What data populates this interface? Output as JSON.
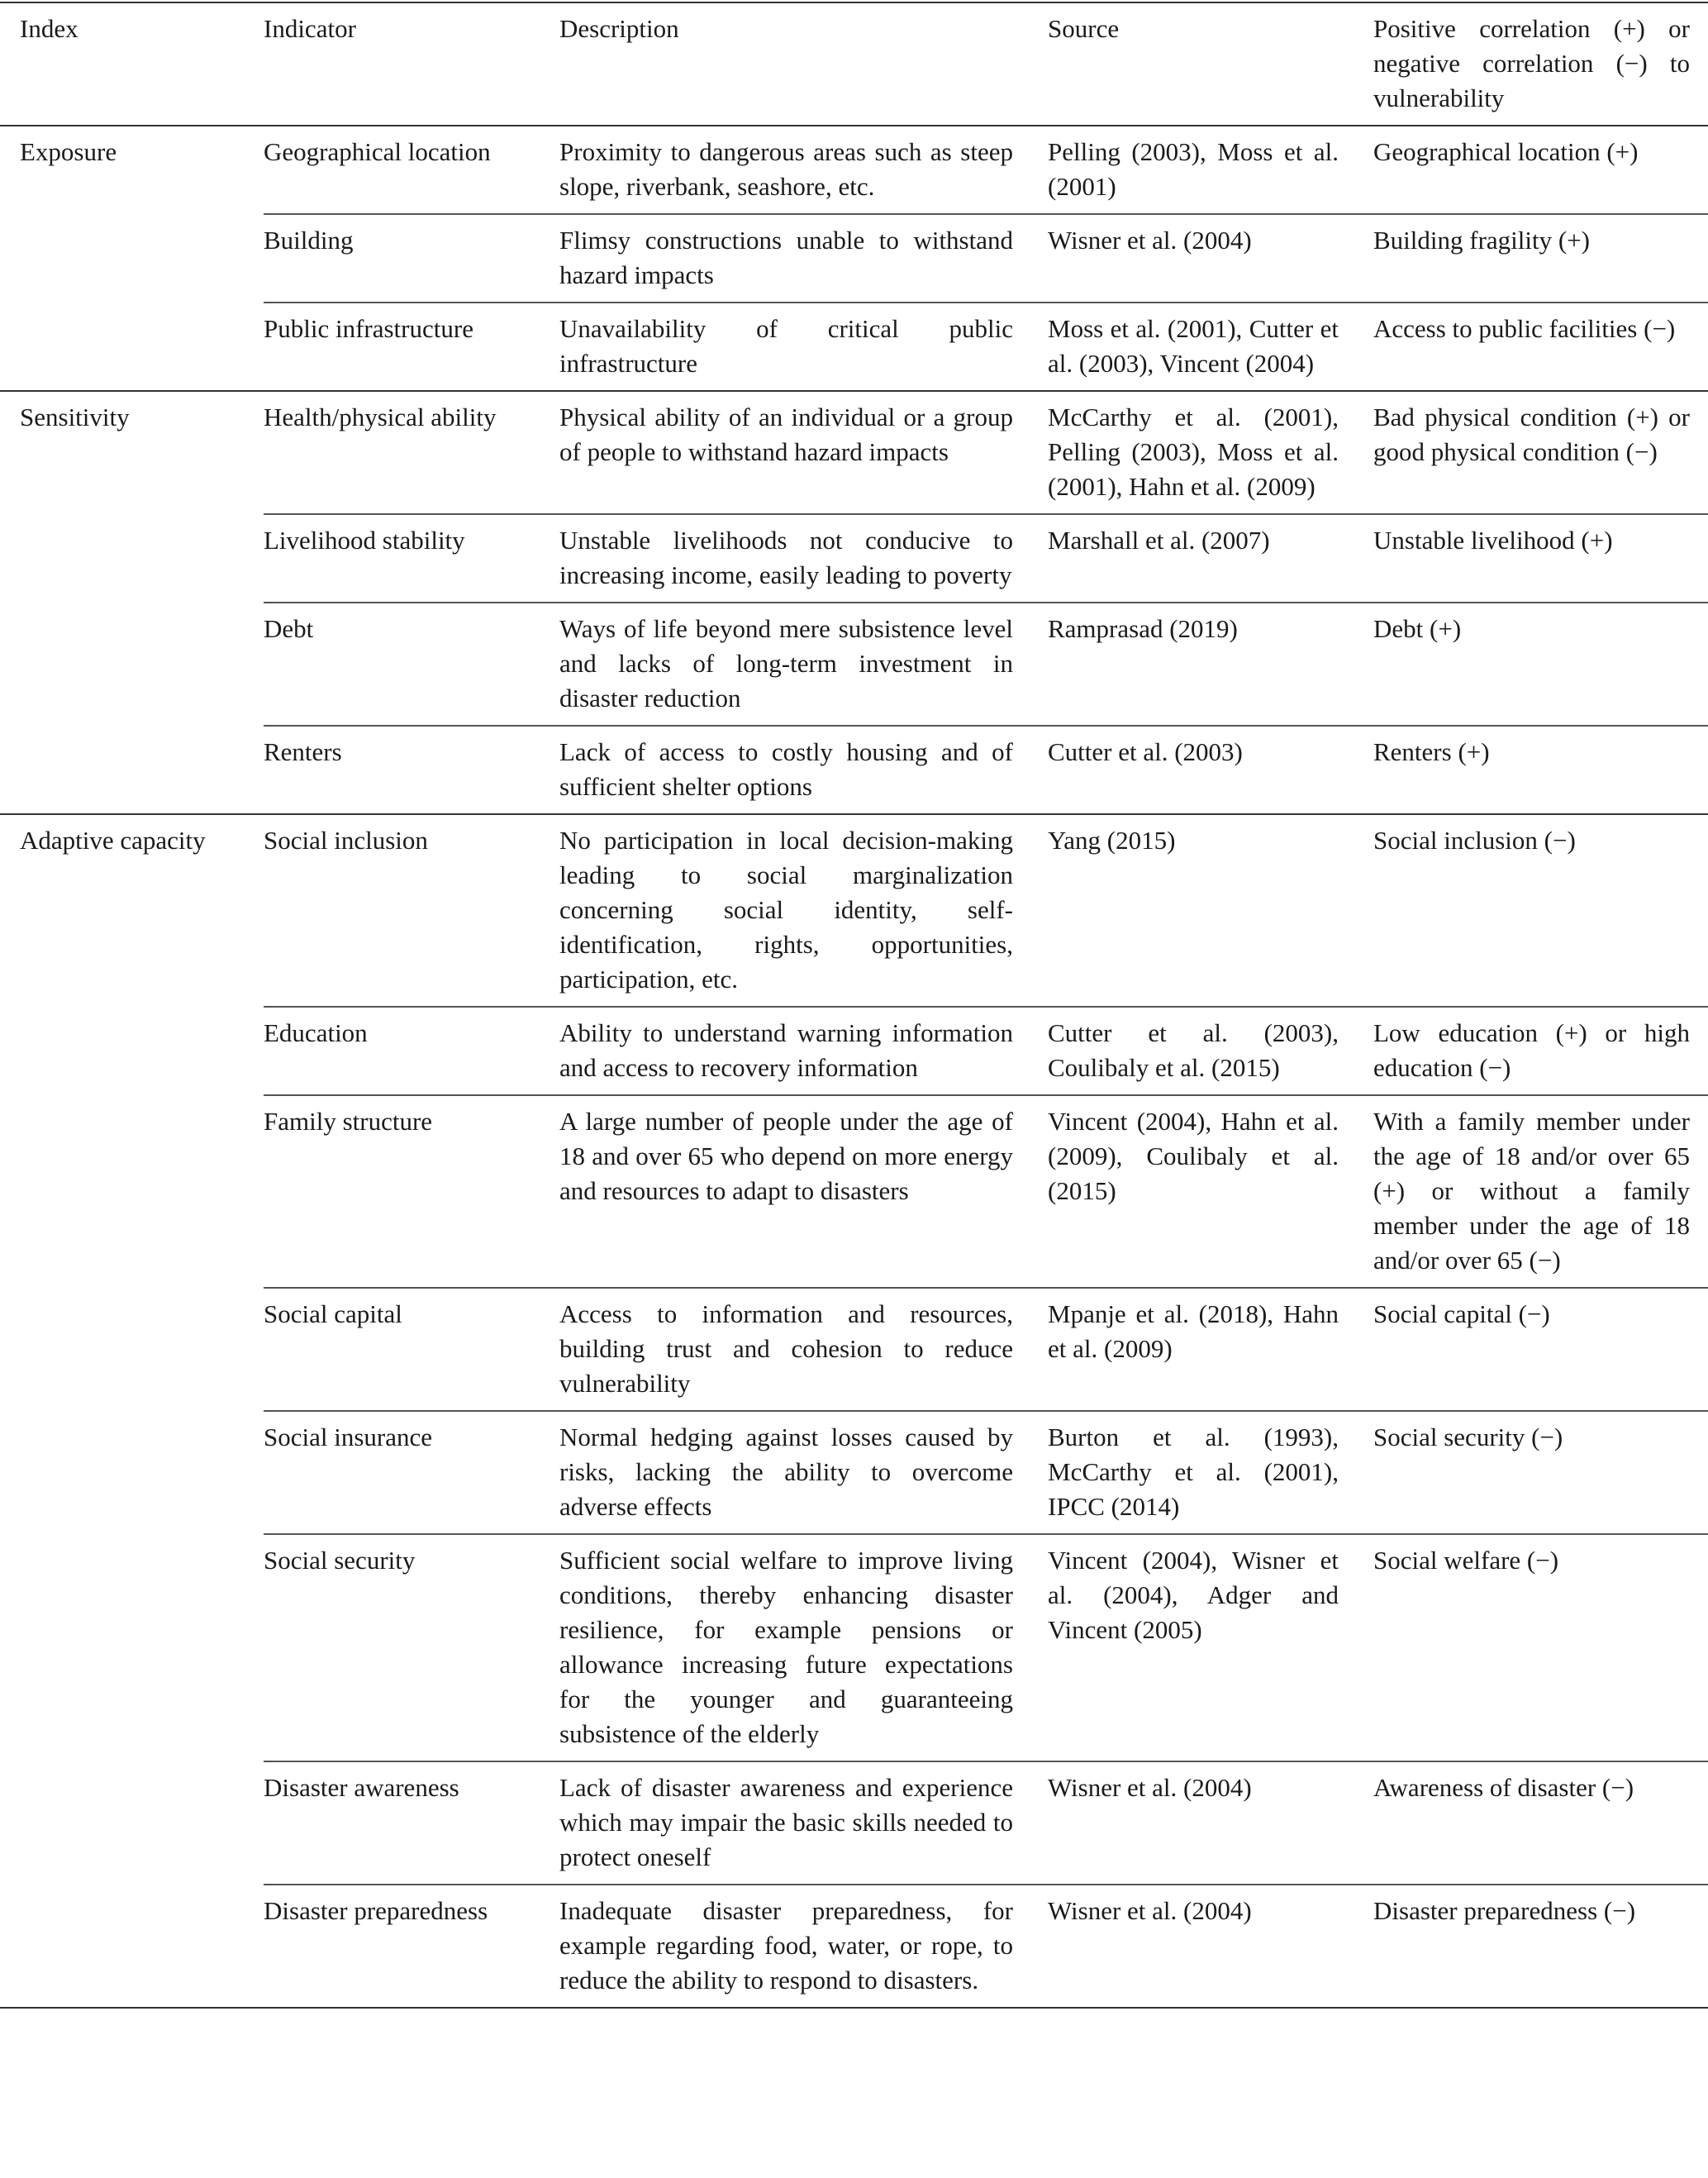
{
  "table": {
    "header": [
      "Index",
      "Indicator",
      "Description",
      "Source",
      "Positive correlation (+) or negative correlation (−) to vulnerability"
    ],
    "groups": [
      {
        "index": "Exposure",
        "rows": [
          [
            "Geographical location",
            "Proximity to dangerous areas such as steep slope, riverbank, seashore, etc.",
            "Pelling (2003), Moss et al. (2001)",
            "Geographical location (+)"
          ],
          [
            "Building",
            "Flimsy constructions unable to withstand hazard impacts",
            "Wisner et al. (2004)",
            "Building fragility (+)"
          ],
          [
            "Public infrastructure",
            "Unavailability of critical public infrastructure",
            "Moss et al. (2001), Cutter et al. (2003), Vincent (2004)",
            "Access to public facilities (−)"
          ]
        ]
      },
      {
        "index": "Sensitivity",
        "rows": [
          [
            "Health/physical ability",
            "Physical ability of an individual or a group of people to withstand hazard impacts",
            "McCarthy et al. (2001), Pelling (2003), Moss et al. (2001), Hahn et al. (2009)",
            "Bad physical condition (+) or good physical condition (−)"
          ],
          [
            "Livelihood stability",
            "Unstable livelihoods not conducive to increasing income, easily leading to poverty",
            "Marshall et al. (2007)",
            "Unstable livelihood (+)"
          ],
          [
            "Debt",
            "Ways of life beyond mere subsistence level and lacks of long-term investment in disaster reduction",
            "Ramprasad (2019)",
            "Debt (+)"
          ],
          [
            "Renters",
            "Lack of access to costly housing and of sufficient shelter options",
            "Cutter et al. (2003)",
            "Renters (+)"
          ]
        ]
      },
      {
        "index": "Adaptive capacity",
        "rows": [
          [
            "Social inclusion",
            "No participation in local decision-making leading to social marginalization concerning social identity, self-identification, rights, opportunities, participation, etc.",
            "Yang (2015)",
            "Social inclusion (−)"
          ],
          [
            "Education",
            "Ability to understand warning information and access to recovery information",
            "Cutter et al. (2003), Coulibaly et al. (2015)",
            "Low education (+) or high education (−)"
          ],
          [
            "Family structure",
            "A large number of people under the age of 18 and over 65 who depend on more energy and resources to adapt to disasters",
            "Vincent (2004), Hahn et al. (2009), Coulibaly et al. (2015)",
            "With a family member under the age of 18 and/or over 65 (+) or without a family member under the age of 18 and/or over 65 (−)"
          ],
          [
            "Social capital",
            "Access to information and resources, building trust and cohesion to reduce vulnerability",
            "Mpanje et al. (2018), Hahn et al. (2009)",
            "Social capital (−)"
          ],
          [
            "Social insurance",
            "Normal hedging against losses caused by risks, lacking the ability to overcome adverse effects",
            "Burton et al. (1993), McCarthy et al. (2001), IPCC (2014)",
            "Social security (−)"
          ],
          [
            "Social security",
            "Sufficient social welfare to improve living conditions, thereby enhancing disaster resilience, for example pensions or allowance increasing future expectations for the younger and guaranteeing subsistence of the elderly",
            "Vincent (2004), Wisner et al. (2004), Adger and Vincent (2005)",
            "Social welfare (−)"
          ],
          [
            "Disaster awareness",
            "Lack of disaster awareness and experience which may impair the basic skills needed to protect oneself",
            "Wisner et al. (2004)",
            "Awareness of disaster (−)"
          ],
          [
            "Disaster preparedness",
            "Inadequate disaster preparedness, for example regarding food, water, or rope, to reduce the ability to respond to disasters.",
            "Wisner et al. (2004)",
            "Disaster preparedness (−)"
          ]
        ]
      }
    ]
  }
}
